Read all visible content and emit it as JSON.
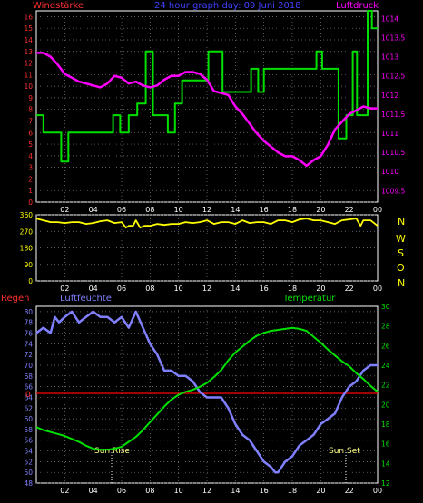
{
  "header": {
    "wind_label": "Windstärke",
    "title": "24 hour graph day: 09 Juni 2018",
    "pressure_label": "Luftdruck"
  },
  "direction_letters": [
    "N",
    "W",
    "S",
    "O",
    "N"
  ],
  "lower_header": {
    "rain_label": "Regen",
    "humidity_label": "Luftfeuchte",
    "temp_label": "Temperatur"
  },
  "annotations": {
    "sunrise": "Sun Rise",
    "sunset": "Sun Set"
  },
  "colors": {
    "wind": "#00e000",
    "pressure": "#ff00ff",
    "direction": "#ffff00",
    "humidity": "#8080ff",
    "temperature": "#00e000",
    "rain": "#ff0000",
    "grid": "#808080",
    "axis_left_top": "#ff3030",
    "axis_right_top": "#ff00ff",
    "axis_direction": "#ffff00",
    "axis_humidity": "#8080ff",
    "axis_temperature": "#00e000"
  },
  "chart_data": [
    {
      "type": "line",
      "title": "24 hour graph day: 09 Juni 2018",
      "x_ticks": [
        "02",
        "04",
        "06",
        "08",
        "10",
        "12",
        "14",
        "16",
        "18",
        "20",
        "22",
        "00"
      ],
      "xlim": [
        0,
        24
      ],
      "ylim": [
        0,
        16.5
      ],
      "yticks": [
        0,
        1,
        2,
        3,
        4,
        5,
        6,
        7,
        8,
        9,
        10,
        11,
        12,
        13,
        14,
        15,
        16
      ],
      "y2lim": [
        1009.2,
        1014.2
      ],
      "y2ticks": [
        "1009.5",
        "1010",
        "1010.5",
        "1011",
        "1011.5",
        "1012",
        "1012.5",
        "1013",
        "1013.5",
        "1014"
      ],
      "grid": true,
      "series": [
        {
          "name": "Windstärke",
          "axis": "left",
          "step": true,
          "x": [
            0,
            0.5,
            1.75,
            2.25,
            4.9,
            5.4,
            5.9,
            6.5,
            7.1,
            7.7,
            8.2,
            9.25,
            9.75,
            10.25,
            11.4,
            12.1,
            13.1,
            13.7,
            14.0,
            14.6,
            15.1,
            15.6,
            16.0,
            19.7,
            20.1,
            21.25,
            21.8,
            22.25,
            22.55,
            23.3,
            23.6,
            24
          ],
          "y": [
            7.5,
            6,
            3.5,
            6,
            6,
            7.5,
            6,
            7.5,
            8.5,
            13,
            7.5,
            6,
            8.5,
            10.5,
            10.5,
            13,
            9.5,
            9.5,
            9.5,
            9.5,
            11.5,
            9.5,
            11.5,
            13,
            11.5,
            5.5,
            7.5,
            13,
            7.5,
            16.5,
            15,
            15
          ]
        },
        {
          "name": "Luftdruck",
          "axis": "right",
          "x": [
            0,
            0.5,
            1,
            1.5,
            2,
            2.5,
            3,
            3.5,
            4,
            4.5,
            5,
            5.5,
            6,
            6.5,
            7,
            7.5,
            8,
            8.5,
            9,
            9.5,
            10,
            10.5,
            11,
            11.5,
            12,
            12.5,
            13,
            13.5,
            14,
            14.5,
            15,
            15.5,
            16,
            16.5,
            17,
            17.5,
            18,
            18.5,
            19,
            19.5,
            20,
            20.5,
            21,
            21.5,
            22,
            22.5,
            23,
            23.5,
            24
          ],
          "y": [
            1013.1,
            1013.1,
            1013.0,
            1012.8,
            1012.55,
            1012.45,
            1012.35,
            1012.3,
            1012.25,
            1012.2,
            1012.3,
            1012.5,
            1012.45,
            1012.3,
            1012.35,
            1012.25,
            1012.2,
            1012.25,
            1012.4,
            1012.5,
            1012.5,
            1012.6,
            1012.6,
            1012.55,
            1012.4,
            1012.1,
            1012.05,
            1012.0,
            1011.7,
            1011.5,
            1011.25,
            1011.0,
            1010.8,
            1010.65,
            1010.5,
            1010.4,
            1010.4,
            1010.3,
            1010.15,
            1010.3,
            1010.4,
            1010.7,
            1011.1,
            1011.3,
            1011.5,
            1011.6,
            1011.7,
            1011.65,
            1011.65
          ]
        }
      ]
    },
    {
      "type": "line",
      "title": "",
      "x_ticks": [
        "02",
        "04",
        "06",
        "08",
        "10",
        "12",
        "14",
        "16",
        "18",
        "20",
        "22",
        "00"
      ],
      "xlim": [
        0,
        24
      ],
      "ylim": [
        0,
        360
      ],
      "yticks": [
        0,
        90,
        180,
        270,
        360
      ],
      "grid": true,
      "series": [
        {
          "name": "",
          "axis": "left",
          "x": [
            0,
            0.5,
            1,
            1.5,
            2,
            2.5,
            3,
            3.5,
            4,
            4.5,
            5,
            5.5,
            6,
            6.3,
            6.5,
            6.8,
            7,
            7.3,
            7.6,
            8,
            8.5,
            9,
            9.5,
            10,
            10.5,
            11,
            11.5,
            12,
            12.5,
            13,
            13.5,
            14,
            14.5,
            15,
            15.5,
            16,
            16.5,
            17,
            17.5,
            18,
            18.5,
            19,
            19.5,
            20,
            20.5,
            21,
            21.5,
            22,
            22.5,
            22.8,
            23,
            23.5,
            24
          ],
          "y": [
            340,
            330,
            320,
            320,
            315,
            320,
            320,
            310,
            315,
            325,
            330,
            315,
            320,
            290,
            300,
            300,
            330,
            290,
            300,
            300,
            310,
            305,
            310,
            310,
            320,
            315,
            320,
            330,
            310,
            320,
            320,
            310,
            330,
            315,
            320,
            320,
            310,
            330,
            330,
            320,
            335,
            340,
            330,
            330,
            320,
            310,
            330,
            335,
            340,
            300,
            330,
            330,
            300
          ]
        }
      ]
    },
    {
      "type": "line",
      "title": "",
      "x_ticks": [
        "02",
        "04",
        "06",
        "08",
        "10",
        "12",
        "14",
        "16",
        "18",
        "20",
        "22",
        "00"
      ],
      "xlim": [
        0,
        24
      ],
      "ylim": [
        48,
        81
      ],
      "yticks": [
        48,
        50,
        52,
        54,
        56,
        58,
        60,
        62,
        64,
        66,
        68,
        70,
        72,
        74,
        76,
        78,
        80
      ],
      "y2lim": [
        12,
        30
      ],
      "y2ticks": [
        12,
        14,
        16,
        18,
        20,
        22,
        24,
        26,
        28,
        30
      ],
      "rain_line": "0",
      "grid": true,
      "series": [
        {
          "name": "Luftfeuchte",
          "axis": "left",
          "x": [
            0,
            0.5,
            1,
            1.3,
            1.6,
            2,
            2.5,
            3,
            3.5,
            4,
            4.5,
            5,
            5.5,
            6,
            6.5,
            7,
            7.5,
            8,
            8.5,
            9,
            9.5,
            10,
            10.5,
            11,
            11.5,
            12,
            12.5,
            13,
            13.5,
            14,
            14.5,
            15,
            15.5,
            16,
            16.5,
            16.8,
            17,
            17.5,
            18,
            18.5,
            19,
            19.5,
            20,
            20.5,
            21,
            21.5,
            22,
            22.5,
            23,
            23.5,
            24
          ],
          "y": [
            76,
            77,
            76,
            79,
            78,
            79,
            80,
            78,
            79,
            80,
            79,
            79,
            78,
            79,
            77,
            80,
            77,
            74,
            72,
            69,
            69,
            68,
            68,
            67,
            65,
            64,
            64,
            64,
            62,
            59,
            57,
            56,
            54,
            52,
            51,
            50,
            50,
            52,
            53,
            55,
            56,
            57,
            59,
            60,
            61,
            64,
            66,
            67,
            69,
            70,
            70
          ]
        },
        {
          "name": "Temperatur",
          "axis": "right",
          "x": [
            0,
            0.5,
            1,
            1.5,
            2,
            2.5,
            3,
            3.5,
            4,
            4.5,
            5,
            5.5,
            6,
            6.5,
            7,
            7.5,
            8,
            8.5,
            9,
            9.5,
            10,
            10.5,
            11,
            11.5,
            12,
            12.5,
            13,
            13.5,
            14,
            14.5,
            15,
            15.5,
            16,
            16.5,
            17,
            17.5,
            18,
            18.5,
            19,
            19.5,
            20,
            20.5,
            21,
            21.5,
            22,
            22.5,
            23,
            23.5,
            24
          ],
          "y": [
            17.7,
            17.4,
            17.2,
            17.0,
            16.8,
            16.5,
            16.2,
            15.8,
            15.5,
            15.4,
            15.4,
            15.5,
            15.7,
            16.2,
            16.7,
            17.4,
            18.2,
            19.0,
            19.8,
            20.5,
            21.0,
            21.3,
            21.5,
            21.8,
            22.2,
            22.8,
            23.5,
            24.5,
            25.3,
            25.9,
            26.5,
            27.0,
            27.3,
            27.5,
            27.6,
            27.7,
            27.8,
            27.7,
            27.5,
            26.9,
            26.3,
            25.6,
            25.0,
            24.4,
            23.9,
            23.2,
            22.6,
            21.9,
            21.3
          ]
        }
      ]
    }
  ]
}
